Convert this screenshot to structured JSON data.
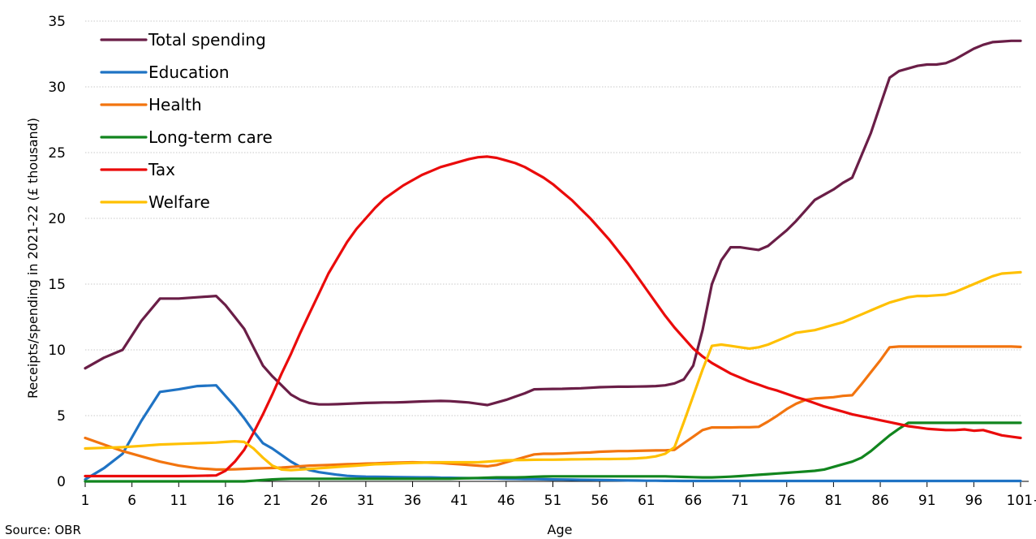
{
  "source": "Source: OBR",
  "chart_data": {
    "type": "line",
    "xlabel": "Age",
    "ylabel": "Receipts/spending in 2021-22 (£ thousand)",
    "ylim": [
      0,
      35
    ],
    "yticks": [
      "0",
      "5",
      "10",
      "15",
      "20",
      "25",
      "30",
      "35"
    ],
    "xticks": [
      "1",
      "6",
      "11",
      "16",
      "21",
      "26",
      "31",
      "36",
      "41",
      "46",
      "51",
      "56",
      "61",
      "66",
      "71",
      "76",
      "81",
      "86",
      "91",
      "96",
      "101+"
    ],
    "grid": "horizontal",
    "legend": "top-left",
    "x": [
      1,
      3,
      5,
      7,
      9,
      11,
      13,
      15,
      16,
      17,
      18,
      19,
      20,
      21,
      22,
      23,
      24,
      25,
      26,
      27,
      28,
      29,
      30,
      31,
      32,
      33,
      34,
      35,
      36,
      37,
      38,
      39,
      40,
      41,
      42,
      43,
      44,
      45,
      46,
      47,
      48,
      49,
      50,
      51,
      52,
      53,
      54,
      55,
      56,
      57,
      58,
      59,
      60,
      61,
      62,
      63,
      64,
      65,
      66,
      67,
      68,
      69,
      70,
      71,
      72,
      73,
      74,
      75,
      76,
      77,
      78,
      79,
      80,
      81,
      82,
      83,
      84,
      85,
      86,
      87,
      88,
      89,
      90,
      91,
      92,
      93,
      94,
      95,
      96,
      97,
      98,
      99,
      100,
      101
    ],
    "series": [
      {
        "name": "Total spending",
        "color": "#6a1e47",
        "values": [
          8.6,
          9.4,
          10.0,
          12.2,
          13.9,
          13.9,
          14.0,
          14.1,
          13.4,
          12.5,
          11.6,
          10.2,
          8.8,
          8.0,
          7.3,
          6.6,
          6.2,
          5.95,
          5.85,
          5.85,
          5.87,
          5.9,
          5.93,
          5.96,
          5.98,
          6.0,
          6.0,
          6.02,
          6.05,
          6.08,
          6.1,
          6.12,
          6.1,
          6.05,
          6.0,
          5.9,
          5.8,
          6.0,
          6.2,
          6.45,
          6.7,
          7.0,
          7.02,
          7.03,
          7.04,
          7.06,
          7.08,
          7.12,
          7.16,
          7.18,
          7.2,
          7.2,
          7.21,
          7.22,
          7.25,
          7.3,
          7.45,
          7.75,
          8.8,
          11.5,
          15.0,
          16.8,
          17.8,
          17.8,
          17.7,
          17.6,
          17.9,
          18.5,
          19.1,
          19.8,
          20.6,
          21.4,
          21.8,
          22.2,
          22.7,
          23.1,
          24.8,
          26.5,
          28.6,
          30.7,
          31.2,
          31.4,
          31.6,
          31.7,
          31.7,
          31.8,
          32.1,
          32.5,
          32.9,
          33.2,
          33.4,
          33.45,
          33.5,
          33.5
        ]
      },
      {
        "name": "Education",
        "color": "#1f73c4",
        "values": [
          0.15,
          1.0,
          2.1,
          4.6,
          6.8,
          7.0,
          7.25,
          7.3,
          6.5,
          5.7,
          4.8,
          3.8,
          2.9,
          2.5,
          2.0,
          1.5,
          1.1,
          0.85,
          0.7,
          0.6,
          0.5,
          0.42,
          0.38,
          0.36,
          0.35,
          0.34,
          0.33,
          0.32,
          0.31,
          0.3,
          0.3,
          0.28,
          0.27,
          0.26,
          0.25,
          0.24,
          0.23,
          0.22,
          0.2,
          0.19,
          0.18,
          0.17,
          0.16,
          0.15,
          0.14,
          0.13,
          0.12,
          0.11,
          0.1,
          0.09,
          0.08,
          0.07,
          0.06,
          0.05,
          0.05,
          0.04,
          0.04,
          0.03,
          0.03,
          0.03,
          0.03,
          0.03,
          0.03,
          0.03,
          0.03,
          0.03,
          0.03,
          0.03,
          0.03,
          0.03,
          0.03,
          0.03,
          0.03,
          0.03,
          0.03,
          0.03,
          0.03,
          0.03,
          0.03,
          0.03,
          0.03,
          0.03,
          0.03,
          0.03,
          0.03,
          0.03,
          0.03,
          0.03,
          0.03,
          0.03,
          0.03,
          0.03,
          0.03,
          0.03
        ]
      },
      {
        "name": "Health",
        "color": "#f2740f",
        "values": [
          3.3,
          2.8,
          2.3,
          1.9,
          1.5,
          1.2,
          1.0,
          0.9,
          0.9,
          0.92,
          0.95,
          0.98,
          1.0,
          1.02,
          1.05,
          1.1,
          1.15,
          1.2,
          1.22,
          1.25,
          1.28,
          1.3,
          1.32,
          1.35,
          1.37,
          1.4,
          1.42,
          1.44,
          1.45,
          1.44,
          1.42,
          1.4,
          1.35,
          1.3,
          1.25,
          1.2,
          1.15,
          1.25,
          1.45,
          1.65,
          1.85,
          2.05,
          2.1,
          2.1,
          2.12,
          2.15,
          2.18,
          2.2,
          2.25,
          2.28,
          2.3,
          2.3,
          2.32,
          2.34,
          2.35,
          2.36,
          2.4,
          2.9,
          3.4,
          3.9,
          4.1,
          4.1,
          4.1,
          4.12,
          4.12,
          4.15,
          4.55,
          5.0,
          5.5,
          5.9,
          6.2,
          6.3,
          6.35,
          6.4,
          6.5,
          6.55,
          7.4,
          8.3,
          9.2,
          10.2,
          10.25,
          10.25,
          10.25,
          10.25,
          10.25,
          10.25,
          10.25,
          10.25,
          10.25,
          10.25,
          10.25,
          10.25,
          10.25,
          10.22
        ]
      },
      {
        "name": "Long-term care",
        "color": "#11851e",
        "values": [
          0,
          0,
          0,
          0,
          0,
          0,
          0,
          0,
          0,
          0,
          0,
          0.05,
          0.1,
          0.15,
          0.18,
          0.2,
          0.2,
          0.2,
          0.2,
          0.2,
          0.2,
          0.2,
          0.2,
          0.2,
          0.2,
          0.2,
          0.2,
          0.2,
          0.2,
          0.2,
          0.2,
          0.2,
          0.2,
          0.22,
          0.24,
          0.26,
          0.28,
          0.3,
          0.3,
          0.3,
          0.32,
          0.35,
          0.37,
          0.38,
          0.38,
          0.38,
          0.38,
          0.38,
          0.38,
          0.38,
          0.38,
          0.38,
          0.38,
          0.38,
          0.38,
          0.38,
          0.36,
          0.34,
          0.32,
          0.3,
          0.3,
          0.33,
          0.36,
          0.4,
          0.45,
          0.5,
          0.55,
          0.6,
          0.65,
          0.7,
          0.75,
          0.8,
          0.9,
          1.1,
          1.3,
          1.5,
          1.8,
          2.3,
          2.9,
          3.5,
          4.0,
          4.45,
          4.45,
          4.45,
          4.45,
          4.45,
          4.45,
          4.45,
          4.45,
          4.45,
          4.45,
          4.45,
          4.45,
          4.45
        ]
      },
      {
        "name": "Tax",
        "color": "#ea0b0b",
        "values": [
          0.4,
          0.4,
          0.4,
          0.4,
          0.4,
          0.4,
          0.42,
          0.45,
          0.8,
          1.5,
          2.4,
          3.7,
          5.1,
          6.6,
          8.2,
          9.7,
          11.3,
          12.8,
          14.3,
          15.8,
          17.0,
          18.2,
          19.2,
          20.0,
          20.8,
          21.5,
          22.0,
          22.5,
          22.9,
          23.3,
          23.6,
          23.9,
          24.1,
          24.3,
          24.5,
          24.65,
          24.7,
          24.6,
          24.4,
          24.2,
          23.9,
          23.5,
          23.1,
          22.6,
          22.0,
          21.4,
          20.7,
          20.0,
          19.2,
          18.4,
          17.5,
          16.6,
          15.6,
          14.6,
          13.6,
          12.6,
          11.7,
          10.9,
          10.1,
          9.5,
          9.0,
          8.6,
          8.2,
          7.9,
          7.6,
          7.35,
          7.1,
          6.9,
          6.65,
          6.4,
          6.2,
          5.95,
          5.7,
          5.5,
          5.3,
          5.1,
          4.95,
          4.8,
          4.65,
          4.5,
          4.35,
          4.2,
          4.1,
          4.0,
          3.95,
          3.9,
          3.9,
          3.95,
          3.85,
          3.9,
          3.7,
          3.5,
          3.4,
          3.3
        ]
      },
      {
        "name": "Welfare",
        "color": "#ffc000",
        "values": [
          2.5,
          2.55,
          2.6,
          2.7,
          2.8,
          2.85,
          2.9,
          2.95,
          3.0,
          3.05,
          3.0,
          2.5,
          1.8,
          1.2,
          0.9,
          0.85,
          0.9,
          0.95,
          1.0,
          1.05,
          1.1,
          1.15,
          1.2,
          1.25,
          1.3,
          1.32,
          1.35,
          1.38,
          1.4,
          1.42,
          1.45,
          1.45,
          1.45,
          1.45,
          1.45,
          1.45,
          1.5,
          1.55,
          1.6,
          1.62,
          1.63,
          1.64,
          1.65,
          1.65,
          1.66,
          1.67,
          1.68,
          1.69,
          1.7,
          1.7,
          1.71,
          1.72,
          1.75,
          1.8,
          1.9,
          2.1,
          2.6,
          4.5,
          6.5,
          8.5,
          10.3,
          10.4,
          10.3,
          10.2,
          10.1,
          10.2,
          10.4,
          10.7,
          11.0,
          11.3,
          11.4,
          11.5,
          11.7,
          11.9,
          12.1,
          12.4,
          12.7,
          13.0,
          13.3,
          13.6,
          13.8,
          14.0,
          14.1,
          14.1,
          14.15,
          14.2,
          14.4,
          14.7,
          15.0,
          15.3,
          15.6,
          15.8,
          15.85,
          15.9
        ]
      }
    ]
  }
}
